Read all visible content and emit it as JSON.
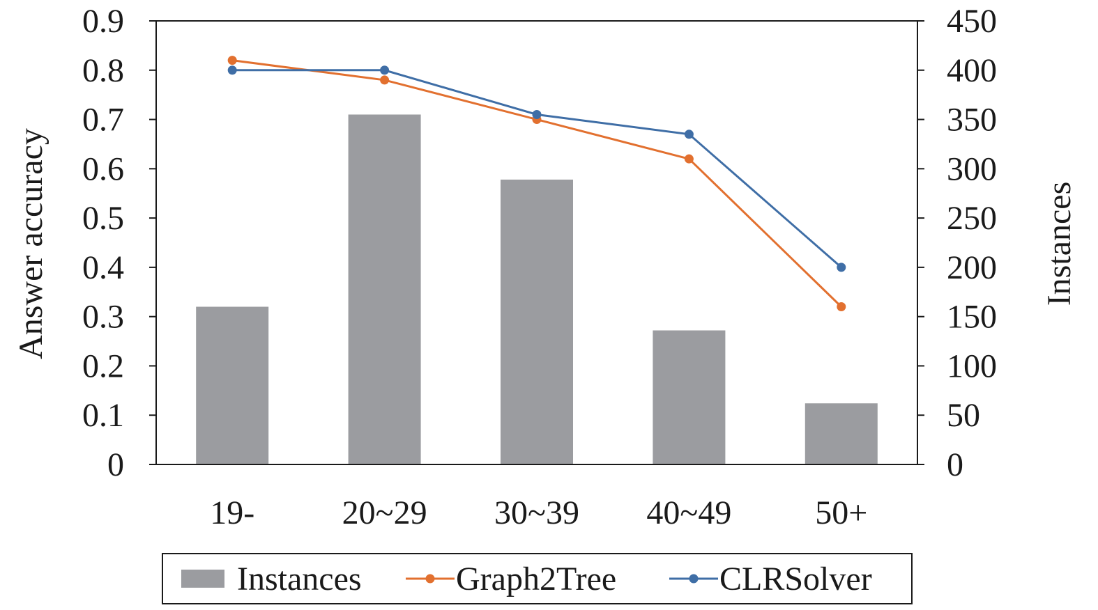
{
  "chart_data": {
    "type": "bar",
    "categories": [
      "19-",
      "20~29",
      "30~39",
      "40~49",
      "50+"
    ],
    "bar_series": {
      "name": "Instances",
      "values": [
        160,
        355,
        289,
        136,
        62
      ],
      "axis": "right",
      "color": "#9b9ca0"
    },
    "line_series": [
      {
        "name": "Graph2Tree",
        "values": [
          0.82,
          0.78,
          0.7,
          0.62,
          0.32
        ],
        "axis": "left",
        "color": "#e2702f"
      },
      {
        "name": "CLRSolver",
        "values": [
          0.8,
          0.8,
          0.71,
          0.67,
          0.4
        ],
        "axis": "left",
        "color": "#3f6ea6"
      }
    ],
    "ylabel": "Answer accuracy",
    "y2label": "Instances",
    "ylim": [
      0,
      0.9
    ],
    "y2lim": [
      0,
      450
    ],
    "yticks": [
      "0",
      "0.1",
      "0.2",
      "0.3",
      "0.4",
      "0.5",
      "0.6",
      "0.7",
      "0.8",
      "0.9"
    ],
    "y2ticks": [
      "0",
      "50",
      "100",
      "150",
      "200",
      "250",
      "300",
      "350",
      "400",
      "450"
    ],
    "grid": false,
    "legend_position": "bottom"
  }
}
